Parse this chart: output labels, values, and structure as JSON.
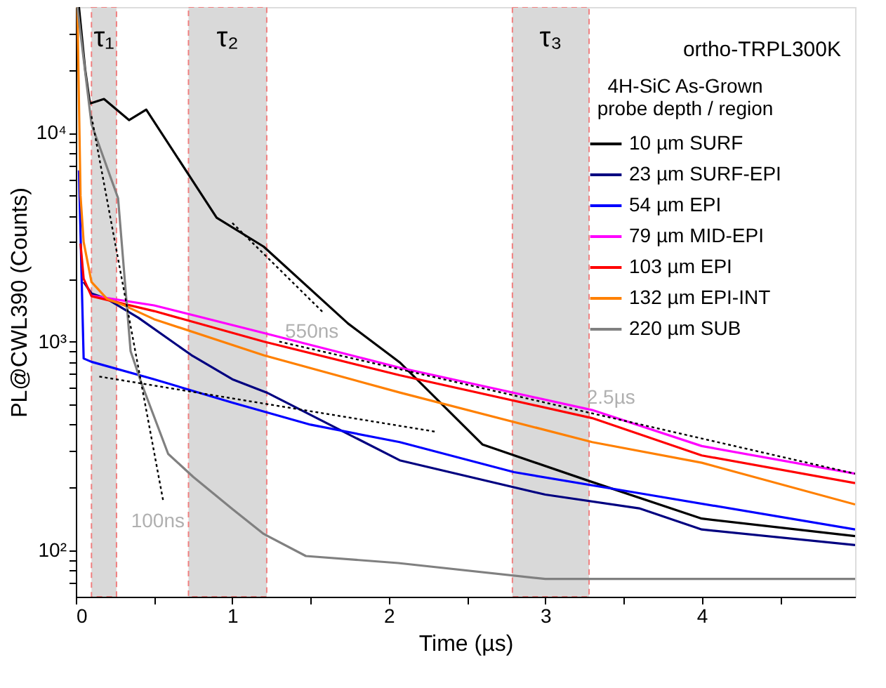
{
  "chart_data": {
    "type": "line",
    "xlabel": "Time (µs)",
    "ylabel": "PL@CWL390 (Counts)",
    "legend_title": "4H-SiC As-Grown\nprobe depth / region",
    "legend": "top right",
    "grid": false,
    "marker": "none",
    "log": "y",
    "xlim": [
      0,
      4.98
    ],
    "xticks": [
      0,
      {
        "value": 0.5,
        "label": null
      },
      1,
      {
        "value": 1.5,
        "label": null
      },
      2,
      {
        "value": 2.5,
        "label": null
      },
      3,
      {
        "value": 3.5,
        "label": null
      },
      4,
      {
        "value": 4.5,
        "label": null
      }
    ],
    "ylim": [
      60,
      40000
    ],
    "yticks": [
      {
        "value": 70,
        "label": null
      },
      {
        "value": 80,
        "label": null
      },
      {
        "value": 90,
        "label": null
      },
      {
        "value": 100,
        "label": "10²"
      },
      {
        "value": 200,
        "label": null
      },
      {
        "value": 300,
        "label": null
      },
      {
        "value": 400,
        "label": null
      },
      {
        "value": 500,
        "label": null
      },
      {
        "value": 600,
        "label": null
      },
      {
        "value": 700,
        "label": null
      },
      {
        "value": 800,
        "label": null
      },
      {
        "value": 900,
        "label": null
      },
      {
        "value": 1000,
        "label": "10³"
      },
      {
        "value": 2000,
        "label": null
      },
      {
        "value": 3000,
        "label": null
      },
      {
        "value": 4000,
        "label": null
      },
      {
        "value": 5000,
        "label": null
      },
      {
        "value": 6000,
        "label": null
      },
      {
        "value": 7000,
        "label": null
      },
      {
        "value": 8000,
        "label": null
      },
      {
        "value": 9000,
        "label": null
      },
      {
        "value": 10000,
        "label": "10⁴"
      },
      {
        "value": 20000,
        "label": null
      },
      {
        "value": 30000,
        "label": null
      }
    ],
    "bands": [
      {
        "axis": "x",
        "from": 0.1,
        "to": 0.26,
        "label": "τ₁",
        "color": "#d9d9d9"
      },
      {
        "axis": "x",
        "from": 0.72,
        "to": 1.22,
        "label": "τ₂",
        "color": "#d9d9d9"
      },
      {
        "axis": "x",
        "from": 2.79,
        "to": 3.28,
        "label": "τ₃",
        "color": "#d9d9d9"
      }
    ],
    "annotations": [
      "ortho-TRPL300K",
      {
        "text": "550ns",
        "x": 1.58,
        "y": 1380
      },
      {
        "text": "100ns",
        "x": 0.56,
        "y": 170
      },
      {
        "text": "2.5µs",
        "x": 3.42,
        "y": 433
      }
    ],
    "series": [
      {
        "name": "10 µm SURF",
        "color": "#000000",
        "x": [
          0.02,
          0.06,
          0.09,
          0.18,
          0.34,
          0.45,
          0.9,
          1.2,
          1.74,
          2.07,
          2.6,
          3.28,
          4.0,
          4.98
        ],
        "values": [
          40000,
          20000,
          13800,
          14500,
          11500,
          12900,
          3920,
          2850,
          1220,
          795,
          321,
          215,
          142,
          117
        ]
      },
      {
        "name": "23 µm SURF-EPI",
        "color": "#000080",
        "x": [
          0.05,
          0.1,
          0.2,
          0.4,
          0.74,
          1.0,
          1.22,
          2.07,
          3.0,
          3.6,
          4.0,
          4.98
        ],
        "values": [
          1930,
          1700,
          1600,
          1300,
          860,
          660,
          570,
          270,
          185,
          159,
          126,
          106
        ]
      },
      {
        "name": "54 µm EPI",
        "color": "#0000ff",
        "x": [
          0.02,
          0.05,
          0.1,
          0.5,
          1.0,
          1.5,
          2.07,
          2.8,
          3.6,
          4.98
        ],
        "values": [
          6600,
          830,
          800,
          660,
          510,
          400,
          330,
          237,
          188,
          126
        ]
      },
      {
        "name": "79 µm MID-EPI",
        "color": "#ff00ff",
        "x": [
          0.1,
          0.5,
          1.2,
          2.07,
          3.3,
          4.0,
          4.98
        ],
        "values": [
          1660,
          1490,
          1100,
          750,
          470,
          316,
          233
        ]
      },
      {
        "name": "103 µm EPI",
        "color": "#ff0000",
        "x": [
          0.03,
          0.05,
          0.1,
          0.5,
          1.2,
          2.07,
          3.3,
          4.0,
          4.98
        ],
        "values": [
          2950,
          2000,
          1650,
          1400,
          1000,
          690,
          430,
          285,
          210
        ]
      },
      {
        "name": "132 µm EPI-INT",
        "color": "#ff8000",
        "x": [
          0.01,
          0.03,
          0.05,
          0.1,
          0.2,
          0.3,
          0.5,
          1.2,
          2.07,
          3.3,
          4.0,
          4.98
        ],
        "values": [
          40000,
          5000,
          3000,
          1930,
          1600,
          1500,
          1280,
          860,
          570,
          330,
          263,
          166
        ]
      },
      {
        "name": "220 µm SUB",
        "color": "#808080",
        "x": [
          0.01,
          0.1,
          0.27,
          0.35,
          0.42,
          0.59,
          0.75,
          1.0,
          1.2,
          1.47,
          2.06,
          3.0,
          4.0,
          4.98
        ],
        "values": [
          40000,
          11000,
          4860,
          900,
          630,
          290,
          225,
          158,
          120,
          94,
          87,
          73,
          73,
          73
        ]
      },
      {
        "type": "line",
        "color": "#000000",
        "line_style": "dotted",
        "x": [
          1.0,
          1.58
        ],
        "values": [
          3700,
          1380
        ]
      },
      {
        "type": "line",
        "color": "#000000",
        "line_style": "dotted",
        "x": [
          0.1,
          0.56
        ],
        "values": [
          12000,
          170
        ]
      },
      {
        "type": "line",
        "color": "#000000",
        "line_style": "dotted",
        "x": [
          1.3,
          4.98
        ],
        "values": [
          1000,
          233
        ]
      },
      {
        "type": "line",
        "color": "#000000",
        "line_style": "dotted",
        "x": [
          0.15,
          2.3
        ],
        "values": [
          680,
          370
        ]
      }
    ]
  }
}
